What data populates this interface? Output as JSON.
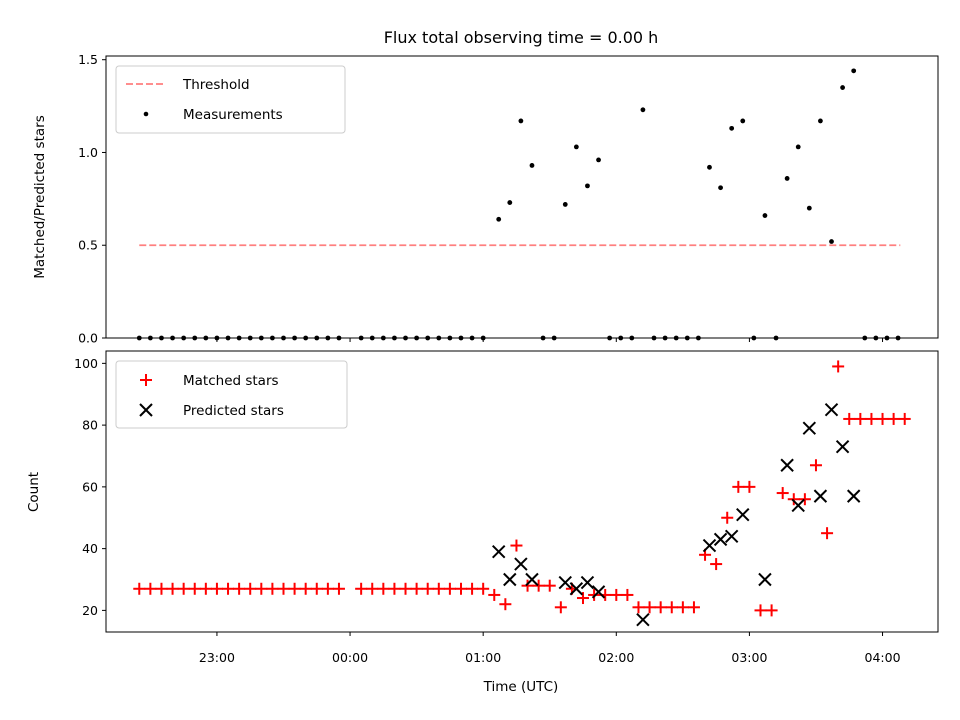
{
  "chart_data": [
    {
      "type": "scatter",
      "title": "Flux total observing time = 0.00 h",
      "xlabel": "",
      "ylabel": "Matched/Predicted stars",
      "xlim": [
        "22:10",
        "04:25"
      ],
      "ylim": [
        0,
        1.52
      ],
      "yticks": [
        "0.0",
        "0.5",
        "1.0",
        "1.5"
      ],
      "threshold": {
        "name": "Threshold",
        "value": 0.5,
        "x_range": [
          "22:25",
          "04:08"
        ],
        "color": "#ff7f7f"
      },
      "series": [
        {
          "name": "Measurements",
          "color": "#000000",
          "points": [
            [
              "22:25",
              0
            ],
            [
              "22:30",
              0
            ],
            [
              "22:35",
              0
            ],
            [
              "22:40",
              0
            ],
            [
              "22:45",
              0
            ],
            [
              "22:50",
              0
            ],
            [
              "22:55",
              0
            ],
            [
              "23:00",
              0
            ],
            [
              "23:05",
              0
            ],
            [
              "23:10",
              0
            ],
            [
              "23:15",
              0
            ],
            [
              "23:20",
              0
            ],
            [
              "23:25",
              0
            ],
            [
              "23:30",
              0
            ],
            [
              "23:35",
              0
            ],
            [
              "23:40",
              0
            ],
            [
              "23:45",
              0
            ],
            [
              "23:50",
              0
            ],
            [
              "23:55",
              0
            ],
            [
              "00:05",
              0
            ],
            [
              "00:10",
              0
            ],
            [
              "00:15",
              0
            ],
            [
              "00:20",
              0
            ],
            [
              "00:25",
              0
            ],
            [
              "00:30",
              0
            ],
            [
              "00:35",
              0
            ],
            [
              "00:40",
              0
            ],
            [
              "00:45",
              0
            ],
            [
              "00:50",
              0
            ],
            [
              "00:55",
              0
            ],
            [
              "01:00",
              0
            ],
            [
              "01:07",
              0.64
            ],
            [
              "01:12",
              0.73
            ],
            [
              "01:17",
              1.17
            ],
            [
              "01:22",
              0.93
            ],
            [
              "01:27",
              0
            ],
            [
              "01:32",
              0
            ],
            [
              "01:37",
              0.72
            ],
            [
              "01:42",
              1.03
            ],
            [
              "01:47",
              0.82
            ],
            [
              "01:52",
              0.96
            ],
            [
              "01:57",
              0
            ],
            [
              "02:02",
              0
            ],
            [
              "02:07",
              0
            ],
            [
              "02:12",
              1.23
            ],
            [
              "02:17",
              0
            ],
            [
              "02:22",
              0
            ],
            [
              "02:27",
              0
            ],
            [
              "02:32",
              0
            ],
            [
              "02:37",
              0
            ],
            [
              "02:42",
              0.92
            ],
            [
              "02:47",
              0.81
            ],
            [
              "02:52",
              1.13
            ],
            [
              "02:57",
              1.17
            ],
            [
              "03:02",
              0
            ],
            [
              "03:07",
              0.66
            ],
            [
              "03:12",
              0
            ],
            [
              "03:17",
              0.86
            ],
            [
              "03:22",
              1.03
            ],
            [
              "03:27",
              0.7
            ],
            [
              "03:32",
              1.17
            ],
            [
              "03:37",
              0.52
            ],
            [
              "03:42",
              1.35
            ],
            [
              "03:47",
              1.44
            ],
            [
              "03:52",
              0
            ],
            [
              "03:57",
              0
            ],
            [
              "04:02",
              0
            ],
            [
              "04:07",
              0
            ]
          ]
        }
      ],
      "legend": {
        "position": "top-left",
        "entries": [
          "Threshold",
          "Measurements"
        ]
      }
    },
    {
      "type": "scatter",
      "title": "",
      "xlabel": "Time (UTC)",
      "ylabel": "Count",
      "xlim": [
        "22:10",
        "04:25"
      ],
      "ylim": [
        13,
        104
      ],
      "xticks": [
        "23:00",
        "00:00",
        "01:00",
        "02:00",
        "03:00",
        "04:00"
      ],
      "yticks": [
        "20",
        "40",
        "60",
        "80",
        "100"
      ],
      "series": [
        {
          "name": "Matched stars",
          "marker": "+",
          "color": "#ff0000",
          "points": [
            [
              "22:25",
              27
            ],
            [
              "22:30",
              27
            ],
            [
              "22:35",
              27
            ],
            [
              "22:40",
              27
            ],
            [
              "22:45",
              27
            ],
            [
              "22:50",
              27
            ],
            [
              "22:55",
              27
            ],
            [
              "23:00",
              27
            ],
            [
              "23:05",
              27
            ],
            [
              "23:10",
              27
            ],
            [
              "23:15",
              27
            ],
            [
              "23:20",
              27
            ],
            [
              "23:25",
              27
            ],
            [
              "23:30",
              27
            ],
            [
              "23:35",
              27
            ],
            [
              "23:40",
              27
            ],
            [
              "23:45",
              27
            ],
            [
              "23:50",
              27
            ],
            [
              "23:55",
              27
            ],
            [
              "00:05",
              27
            ],
            [
              "00:10",
              27
            ],
            [
              "00:15",
              27
            ],
            [
              "00:20",
              27
            ],
            [
              "00:25",
              27
            ],
            [
              "00:30",
              27
            ],
            [
              "00:35",
              27
            ],
            [
              "00:40",
              27
            ],
            [
              "00:45",
              27
            ],
            [
              "00:50",
              27
            ],
            [
              "00:55",
              27
            ],
            [
              "01:00",
              27
            ],
            [
              "01:05",
              25
            ],
            [
              "01:10",
              22
            ],
            [
              "01:15",
              41
            ],
            [
              "01:20",
              28
            ],
            [
              "01:25",
              28
            ],
            [
              "01:30",
              28
            ],
            [
              "01:35",
              21
            ],
            [
              "01:40",
              27
            ],
            [
              "01:45",
              24
            ],
            [
              "01:50",
              25
            ],
            [
              "01:55",
              25
            ],
            [
              "02:00",
              25
            ],
            [
              "02:05",
              25
            ],
            [
              "02:10",
              21
            ],
            [
              "02:15",
              21
            ],
            [
              "02:20",
              21
            ],
            [
              "02:25",
              21
            ],
            [
              "02:30",
              21
            ],
            [
              "02:35",
              21
            ],
            [
              "02:40",
              38
            ],
            [
              "02:45",
              35
            ],
            [
              "02:50",
              50
            ],
            [
              "02:55",
              60
            ],
            [
              "03:00",
              60
            ],
            [
              "03:05",
              20
            ],
            [
              "03:10",
              20
            ],
            [
              "03:15",
              58
            ],
            [
              "03:20",
              56
            ],
            [
              "03:25",
              56
            ],
            [
              "03:30",
              67
            ],
            [
              "03:35",
              45
            ],
            [
              "03:40",
              99
            ],
            [
              "03:45",
              82
            ],
            [
              "03:50",
              82
            ],
            [
              "03:55",
              82
            ],
            [
              "04:00",
              82
            ],
            [
              "04:05",
              82
            ],
            [
              "04:10",
              82
            ]
          ]
        },
        {
          "name": "Predicted stars",
          "marker": "x",
          "color": "#000000",
          "points": [
            [
              "01:07",
              39
            ],
            [
              "01:12",
              30
            ],
            [
              "01:17",
              35
            ],
            [
              "01:22",
              30
            ],
            [
              "01:37",
              29
            ],
            [
              "01:42",
              27
            ],
            [
              "01:47",
              29
            ],
            [
              "01:52",
              26
            ],
            [
              "02:12",
              17
            ],
            [
              "02:42",
              41
            ],
            [
              "02:47",
              43
            ],
            [
              "02:52",
              44
            ],
            [
              "02:57",
              51
            ],
            [
              "03:07",
              30
            ],
            [
              "03:17",
              67
            ],
            [
              "03:22",
              54
            ],
            [
              "03:27",
              79
            ],
            [
              "03:32",
              57
            ],
            [
              "03:37",
              85
            ],
            [
              "03:42",
              73
            ],
            [
              "03:47",
              57
            ]
          ]
        }
      ],
      "legend": {
        "position": "top-left",
        "entries": [
          "Matched stars",
          "Predicted stars"
        ]
      }
    }
  ]
}
